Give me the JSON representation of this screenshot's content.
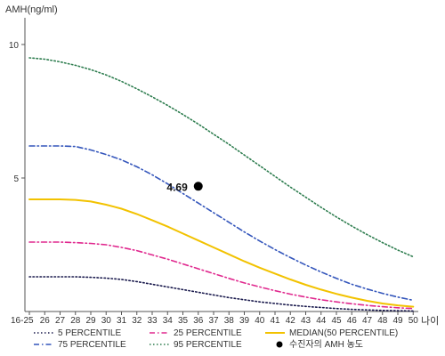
{
  "chart_data": {
    "type": "line",
    "ylabel": "AMH(ng/ml)",
    "xlabel": "나이",
    "categories": [
      "16-25",
      "26",
      "27",
      "28",
      "29",
      "30",
      "31",
      "32",
      "33",
      "34",
      "35",
      "36",
      "37",
      "38",
      "39",
      "40",
      "41",
      "42",
      "43",
      "44",
      "45",
      "46",
      "47",
      "48",
      "49",
      "50"
    ],
    "ylim": [
      0,
      11
    ],
    "y_ticks": [
      5,
      10
    ],
    "y_tick_labels": [
      "5",
      "10"
    ],
    "series": [
      {
        "key": "p5",
        "name": "5 PERCENTILE",
        "color": "#1a1a4d",
        "style": "dotted",
        "values": [
          1.3,
          1.3,
          1.3,
          1.3,
          1.28,
          1.25,
          1.2,
          1.12,
          1.02,
          0.92,
          0.82,
          0.72,
          0.62,
          0.52,
          0.44,
          0.36,
          0.3,
          0.24,
          0.19,
          0.15,
          0.11,
          0.08,
          0.06,
          0.04,
          0.03,
          0.02
        ]
      },
      {
        "key": "p25",
        "name": "25 PERCENTILE",
        "color": "#e0288e",
        "style": "dashdot",
        "values": [
          2.6,
          2.6,
          2.6,
          2.58,
          2.55,
          2.5,
          2.4,
          2.28,
          2.12,
          1.96,
          1.78,
          1.6,
          1.42,
          1.24,
          1.07,
          0.92,
          0.78,
          0.65,
          0.54,
          0.44,
          0.36,
          0.29,
          0.23,
          0.18,
          0.14,
          0.11
        ]
      },
      {
        "key": "p50",
        "name": "MEDIAN(50 PERCENTILE)",
        "color": "#f2c200",
        "style": "solid",
        "values": [
          4.2,
          4.2,
          4.2,
          4.18,
          4.12,
          4.0,
          3.85,
          3.65,
          3.42,
          3.18,
          2.92,
          2.66,
          2.4,
          2.14,
          1.88,
          1.64,
          1.42,
          1.2,
          1.0,
          0.82,
          0.66,
          0.52,
          0.4,
          0.3,
          0.23,
          0.18
        ]
      },
      {
        "key": "p75",
        "name": "75 PERCENTILE",
        "color": "#3355bb",
        "style": "dashdot",
        "values": [
          6.2,
          6.2,
          6.2,
          6.18,
          6.05,
          5.88,
          5.68,
          5.42,
          5.12,
          4.78,
          4.42,
          4.06,
          3.7,
          3.34,
          2.98,
          2.64,
          2.32,
          2.02,
          1.74,
          1.48,
          1.24,
          1.02,
          0.84,
          0.68,
          0.54,
          0.42
        ]
      },
      {
        "key": "p95",
        "name": "95 PERCENTILE",
        "color": "#2e7d4f",
        "style": "dotted",
        "values": [
          9.5,
          9.45,
          9.35,
          9.22,
          9.06,
          8.86,
          8.62,
          8.34,
          8.04,
          7.72,
          7.38,
          7.02,
          6.64,
          6.26,
          5.86,
          5.46,
          5.06,
          4.66,
          4.28,
          3.9,
          3.54,
          3.2,
          2.88,
          2.58,
          2.3,
          2.05
        ]
      }
    ],
    "patient_point": {
      "name": "수진자의 AMH 농도",
      "x": "36",
      "y": 4.69,
      "label": "4.69",
      "color": "#000000"
    },
    "grid": false,
    "legend_position": "bottom"
  }
}
